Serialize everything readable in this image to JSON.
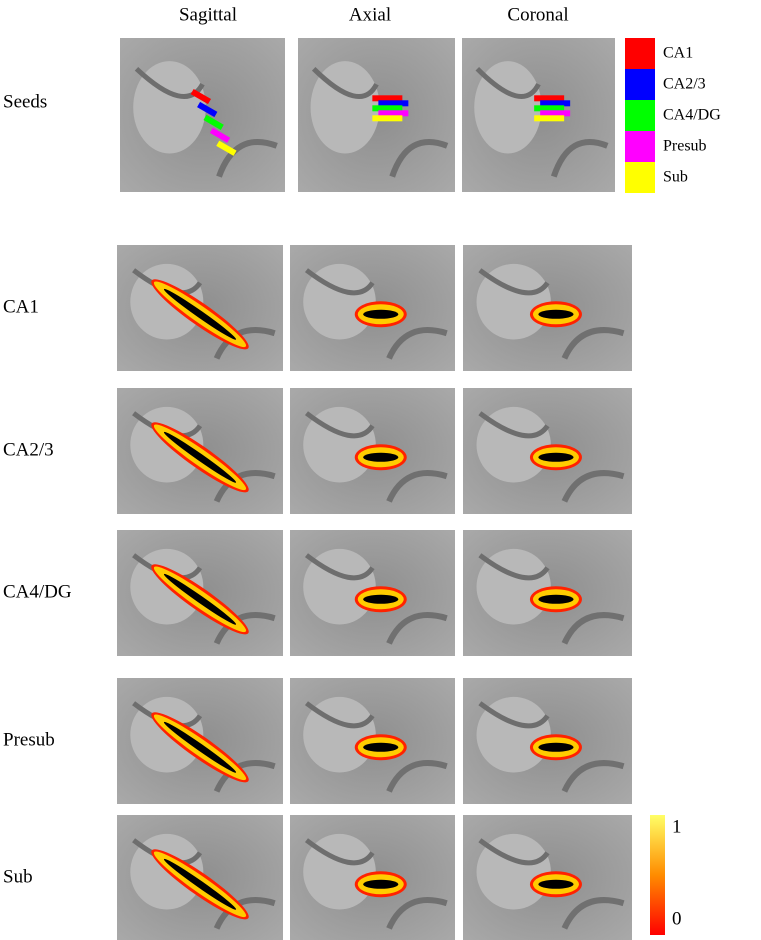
{
  "columns": [
    "Sagittal",
    "Axial",
    "Coronal"
  ],
  "seeds_label": "Seeds",
  "legend": [
    {
      "label": "CA1",
      "color": "#ff0000"
    },
    {
      "label": "CA2/3",
      "color": "#0000ff"
    },
    {
      "label": "CA4/DG",
      "color": "#00ff00"
    },
    {
      "label": "Presub",
      "color": "#ff00ff"
    },
    {
      "label": "Sub",
      "color": "#ffff00"
    }
  ],
  "rows": [
    "CA1",
    "CA2/3",
    "CA4/DG",
    "Presub",
    "Sub"
  ],
  "colorbar": {
    "max": 1,
    "min": 0
  }
}
